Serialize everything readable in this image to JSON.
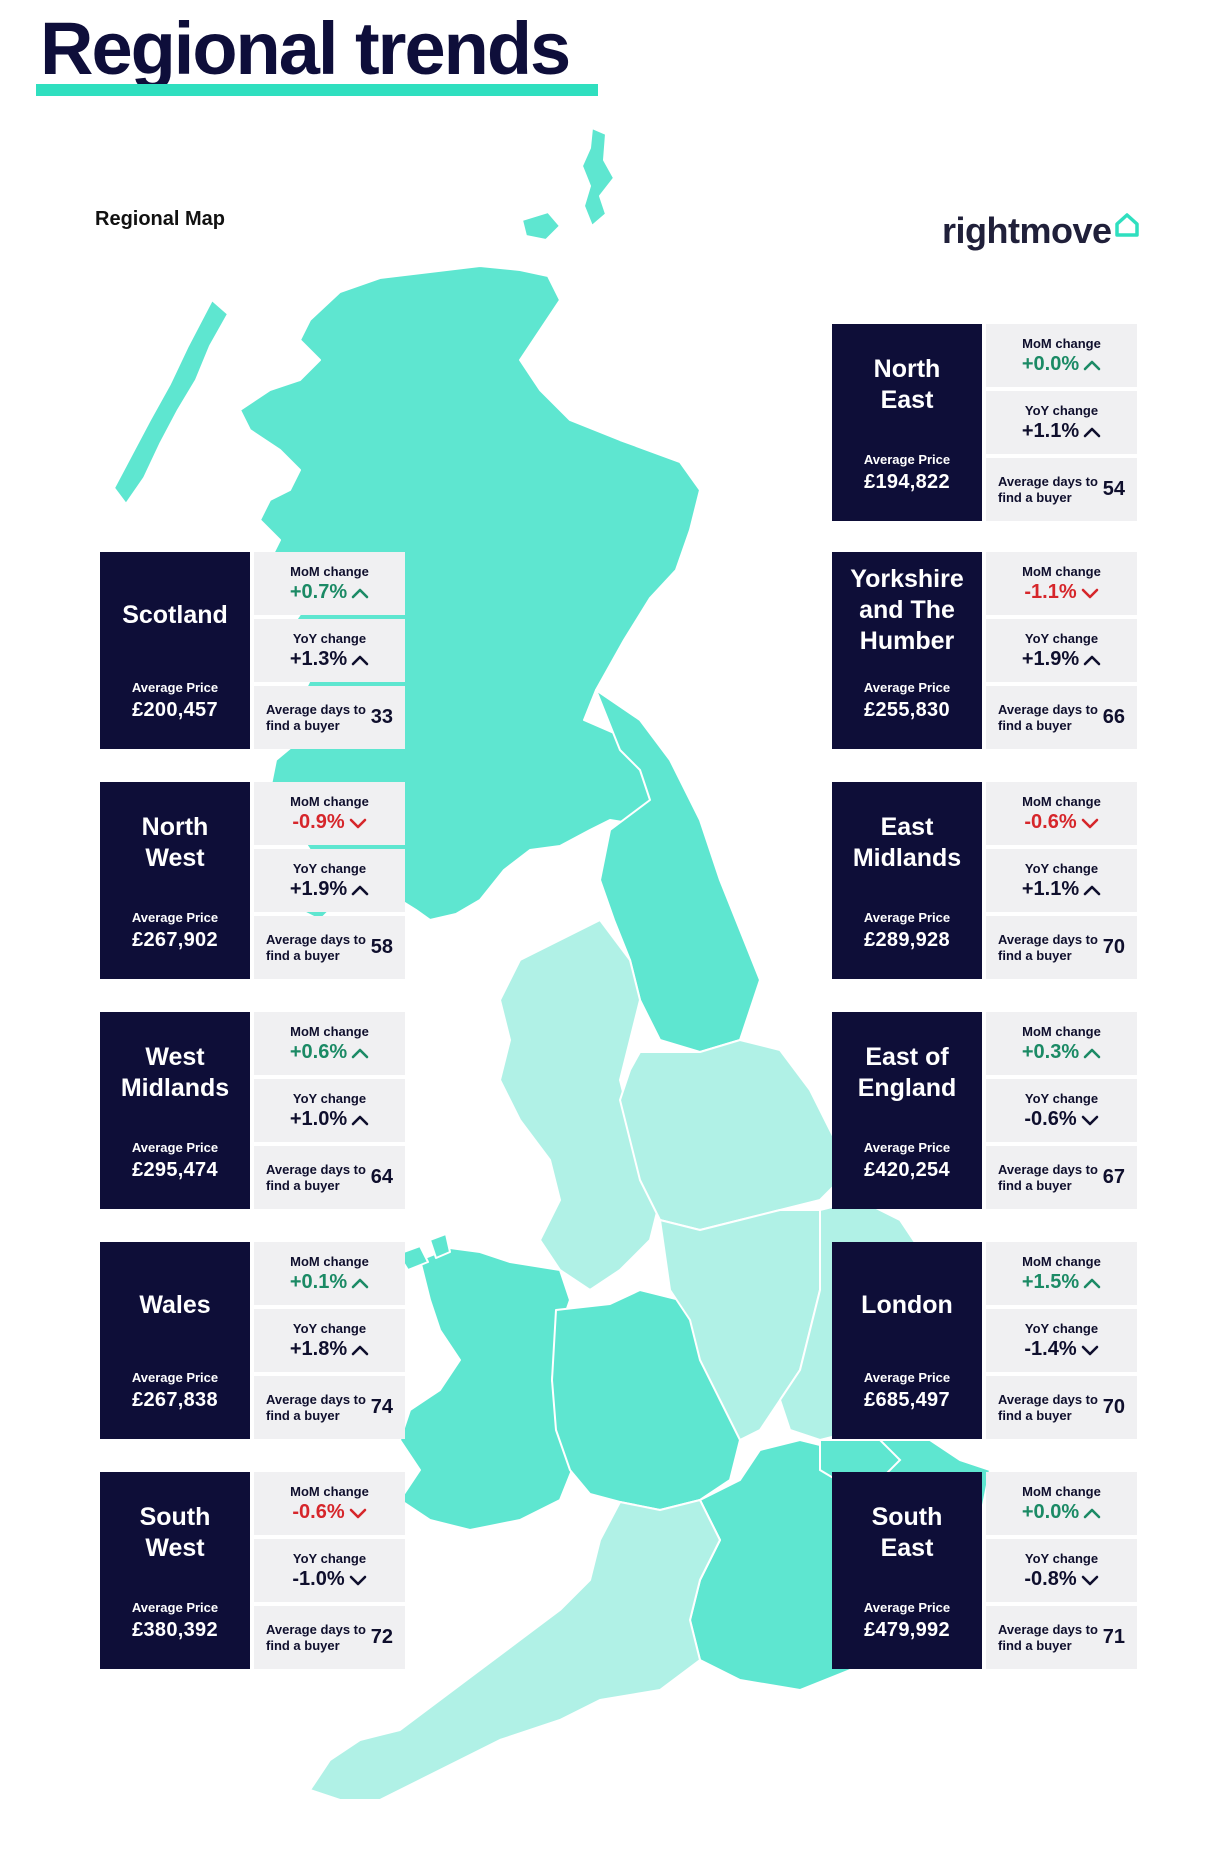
{
  "header": {
    "title": "Regional trends",
    "map_label": "Regional Map",
    "brand": "rightmove"
  },
  "labels": {
    "average_price": "Average Price",
    "mom": "MoM change",
    "yoy": "YoY change",
    "days": "Average days to find a buyer"
  },
  "colors": {
    "navy": "#0e0e38",
    "teal_dark": "#5ee6d0",
    "teal_light": "#b0f1e6",
    "positive": "#1b8a65",
    "negative": "#d6262b"
  },
  "regions": [
    {
      "name": "Scotland",
      "price": "£200,457",
      "mom": "+0.7%",
      "mom_dir": "up",
      "yoy": "+1.3%",
      "yoy_dir": "up",
      "days": "33"
    },
    {
      "name": "North West",
      "price": "£267,902",
      "mom": "-0.9%",
      "mom_dir": "down",
      "yoy": "+1.9%",
      "yoy_dir": "up",
      "days": "58"
    },
    {
      "name": "West Midlands",
      "price": "£295,474",
      "mom": "+0.6%",
      "mom_dir": "up",
      "yoy": "+1.0%",
      "yoy_dir": "up",
      "days": "64"
    },
    {
      "name": "Wales",
      "price": "£267,838",
      "mom": "+0.1%",
      "mom_dir": "up",
      "yoy": "+1.8%",
      "yoy_dir": "up",
      "days": "74"
    },
    {
      "name": "South West",
      "price": "£380,392",
      "mom": "-0.6%",
      "mom_dir": "down",
      "yoy": "-1.0%",
      "yoy_dir": "down",
      "days": "72"
    },
    {
      "name": "North East",
      "price": "£194,822",
      "mom": "+0.0%",
      "mom_dir": "up",
      "yoy": "+1.1%",
      "yoy_dir": "up",
      "days": "54"
    },
    {
      "name": "Yorkshire and The Humber",
      "price": "£255,830",
      "mom": "-1.1%",
      "mom_dir": "down",
      "yoy": "+1.9%",
      "yoy_dir": "up",
      "days": "66"
    },
    {
      "name": "East Midlands",
      "price": "£289,928",
      "mom": "-0.6%",
      "mom_dir": "down",
      "yoy": "+1.1%",
      "yoy_dir": "up",
      "days": "70"
    },
    {
      "name": "East of England",
      "price": "£420,254",
      "mom": "+0.3%",
      "mom_dir": "up",
      "yoy": "-0.6%",
      "yoy_dir": "down",
      "days": "67"
    },
    {
      "name": "London",
      "price": "£685,497",
      "mom": "+1.5%",
      "mom_dir": "up",
      "yoy": "-1.4%",
      "yoy_dir": "down",
      "days": "70"
    },
    {
      "name": "South East",
      "price": "£479,992",
      "mom": "+0.0%",
      "mom_dir": "up",
      "yoy": "-0.8%",
      "yoy_dir": "down",
      "days": "71"
    }
  ]
}
